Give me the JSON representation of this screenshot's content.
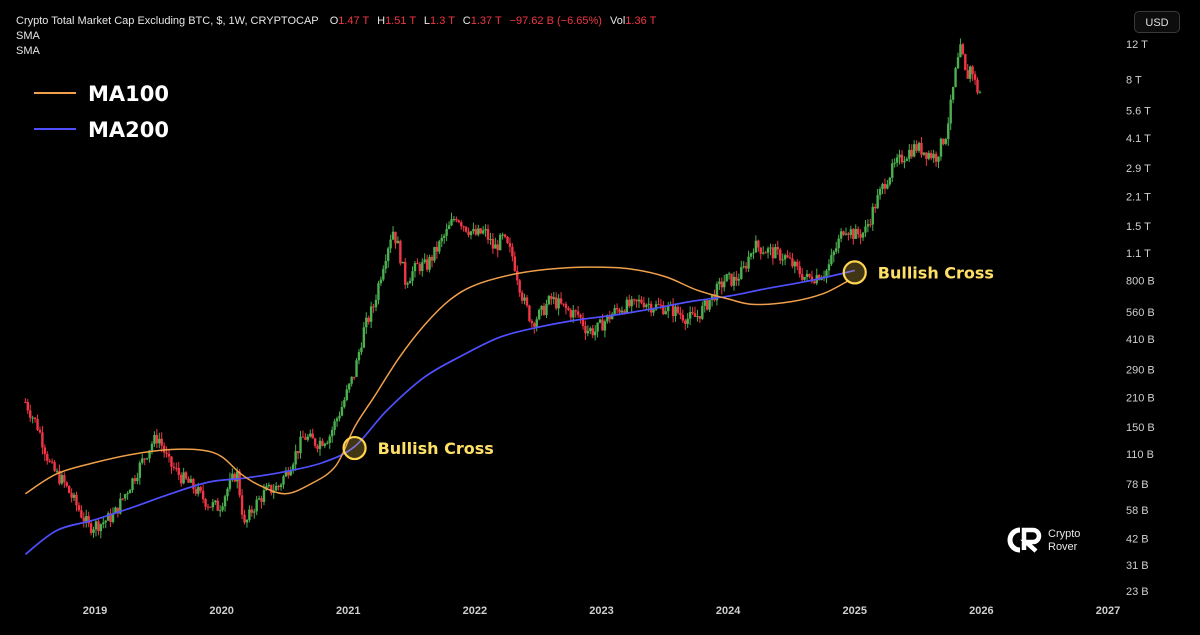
{
  "header": {
    "title": "Crypto Total Market Cap Excluding BTC, $, 1W, CRYPTOCAP",
    "o_label": "O",
    "o_value": "1.47 T",
    "h_label": "H",
    "h_value": "1.51 T",
    "l_label": "L",
    "l_value": "1.3 T",
    "c_label": "C",
    "c_value": "1.37 T",
    "change": "−97.62 B (−6.65%)",
    "vol_label": "Vol",
    "vol_value": "1.36 T",
    "sma_1": "SMA",
    "sma_2": "SMA"
  },
  "currency_button": "USD",
  "legend": [
    {
      "label": "MA100",
      "color": "#f0a04b"
    },
    {
      "label": "MA200",
      "color": "#4f4fff"
    }
  ],
  "brand": {
    "line1": "Crypto",
    "line2": "Rover"
  },
  "colors": {
    "up": "#4caf50",
    "down": "#f23645",
    "ma100": "#f0a04b",
    "ma200": "#4f4fff",
    "marker": "#ffd54f",
    "annotation": "#ffe066"
  },
  "chart_data": {
    "type": "candlestick",
    "title": "Crypto Total Market Cap Excluding BTC",
    "scale": "log",
    "y_ticks": [
      "12 T",
      "8 T",
      "5.6 T",
      "4.1 T",
      "2.9 T",
      "2.1 T",
      "1.5 T",
      "1.1 T",
      "800 B",
      "560 B",
      "410 B",
      "290 B",
      "210 B",
      "150 B",
      "110 B",
      "78 B",
      "58 B",
      "42 B",
      "31 B",
      "23 B"
    ],
    "y_tick_values": [
      12000,
      8000,
      5600,
      4100,
      2900,
      2100,
      1500,
      1100,
      800,
      560,
      410,
      290,
      210,
      150,
      110,
      78,
      58,
      42,
      31,
      23
    ],
    "x_ticks": [
      "2019",
      "2020",
      "2021",
      "2022",
      "2023",
      "2024",
      "2025",
      "2026",
      "2027"
    ],
    "x_tick_values": [
      2019,
      2020,
      2021,
      2022,
      2023,
      2024,
      2025,
      2026,
      2027
    ],
    "xlim": [
      2018.4,
      2027.3
    ],
    "price_path": [
      [
        2018.45,
        200
      ],
      [
        2018.55,
        150
      ],
      [
        2018.65,
        95
      ],
      [
        2018.75,
        80
      ],
      [
        2018.85,
        62
      ],
      [
        2018.95,
        48
      ],
      [
        2019.05,
        50
      ],
      [
        2019.15,
        55
      ],
      [
        2019.25,
        72
      ],
      [
        2019.35,
        95
      ],
      [
        2019.45,
        125
      ],
      [
        2019.5,
        135
      ],
      [
        2019.58,
        100
      ],
      [
        2019.68,
        85
      ],
      [
        2019.78,
        75
      ],
      [
        2019.9,
        62
      ],
      [
        2019.98,
        60
      ],
      [
        2020.05,
        75
      ],
      [
        2020.12,
        90
      ],
      [
        2020.18,
        48
      ],
      [
        2020.25,
        60
      ],
      [
        2020.35,
        72
      ],
      [
        2020.45,
        76
      ],
      [
        2020.55,
        100
      ],
      [
        2020.65,
        135
      ],
      [
        2020.75,
        125
      ],
      [
        2020.85,
        135
      ],
      [
        2020.95,
        190
      ],
      [
        2021.05,
        280
      ],
      [
        2021.12,
        450
      ],
      [
        2021.2,
        600
      ],
      [
        2021.28,
        1000
      ],
      [
        2021.35,
        1450
      ],
      [
        2021.4,
        1150
      ],
      [
        2021.45,
        800
      ],
      [
        2021.55,
        950
      ],
      [
        2021.62,
        950
      ],
      [
        2021.7,
        1150
      ],
      [
        2021.78,
        1400
      ],
      [
        2021.85,
        1700
      ],
      [
        2021.92,
        1500
      ],
      [
        2022.0,
        1350
      ],
      [
        2022.08,
        1400
      ],
      [
        2022.15,
        1150
      ],
      [
        2022.22,
        1300
      ],
      [
        2022.3,
        1050
      ],
      [
        2022.38,
        650
      ],
      [
        2022.45,
        500
      ],
      [
        2022.52,
        550
      ],
      [
        2022.6,
        650
      ],
      [
        2022.68,
        600
      ],
      [
        2022.75,
        560
      ],
      [
        2022.82,
        540
      ],
      [
        2022.88,
        460
      ],
      [
        2022.95,
        450
      ],
      [
        2023.02,
        500
      ],
      [
        2023.1,
        560
      ],
      [
        2023.18,
        600
      ],
      [
        2023.25,
        600
      ],
      [
        2023.32,
        640
      ],
      [
        2023.4,
        600
      ],
      [
        2023.5,
        590
      ],
      [
        2023.6,
        560
      ],
      [
        2023.68,
        520
      ],
      [
        2023.75,
        530
      ],
      [
        2023.82,
        600
      ],
      [
        2023.9,
        700
      ],
      [
        2023.98,
        820
      ],
      [
        2024.05,
        800
      ],
      [
        2024.12,
        900
      ],
      [
        2024.2,
        1200
      ],
      [
        2024.28,
        1150
      ],
      [
        2024.36,
        1100
      ],
      [
        2024.45,
        1050
      ],
      [
        2024.55,
        900
      ],
      [
        2024.62,
        820
      ],
      [
        2024.7,
        850
      ],
      [
        2024.78,
        900
      ],
      [
        2024.85,
        1150
      ],
      [
        2024.92,
        1500
      ],
      [
        2025.0,
        1350
      ],
      [
        2025.08,
        1400
      ],
      [
        2025.16,
        1900
      ],
      [
        2025.24,
        2500
      ],
      [
        2025.32,
        3000
      ],
      [
        2025.4,
        3400
      ],
      [
        2025.48,
        3700
      ],
      [
        2025.56,
        3500
      ],
      [
        2025.64,
        3300
      ],
      [
        2025.72,
        4300
      ],
      [
        2025.76,
        6000
      ],
      [
        2025.8,
        9000
      ],
      [
        2025.84,
        11500
      ],
      [
        2025.88,
        8000
      ],
      [
        2025.92,
        9500
      ],
      [
        2025.96,
        7200
      ],
      [
        2026.0,
        6800
      ]
    ],
    "ma100": [
      [
        2018.45,
        70
      ],
      [
        2018.7,
        88
      ],
      [
        2019.0,
        100
      ],
      [
        2019.3,
        110
      ],
      [
        2019.6,
        116
      ],
      [
        2019.85,
        115
      ],
      [
        2020.0,
        107
      ],
      [
        2020.15,
        88
      ],
      [
        2020.3,
        77
      ],
      [
        2020.5,
        70
      ],
      [
        2020.7,
        78
      ],
      [
        2020.9,
        96
      ],
      [
        2021.05,
        150
      ],
      [
        2021.2,
        210
      ],
      [
        2021.4,
        330
      ],
      [
        2021.6,
        480
      ],
      [
        2021.8,
        640
      ],
      [
        2022.0,
        760
      ],
      [
        2022.3,
        860
      ],
      [
        2022.6,
        915
      ],
      [
        2022.9,
        935
      ],
      [
        2023.2,
        920
      ],
      [
        2023.5,
        840
      ],
      [
        2023.75,
        720
      ],
      [
        2024.0,
        650
      ],
      [
        2024.2,
        610
      ],
      [
        2024.5,
        630
      ],
      [
        2024.75,
        690
      ],
      [
        2024.95,
        800
      ]
    ],
    "ma200": [
      [
        2018.45,
        35
      ],
      [
        2018.7,
        46
      ],
      [
        2019.0,
        52
      ],
      [
        2019.3,
        60
      ],
      [
        2019.6,
        70
      ],
      [
        2019.9,
        80
      ],
      [
        2020.2,
        84
      ],
      [
        2020.5,
        90
      ],
      [
        2020.8,
        100
      ],
      [
        2021.05,
        120
      ],
      [
        2021.3,
        180
      ],
      [
        2021.6,
        265
      ],
      [
        2021.9,
        340
      ],
      [
        2022.2,
        420
      ],
      [
        2022.5,
        470
      ],
      [
        2022.8,
        510
      ],
      [
        2023.1,
        540
      ],
      [
        2023.4,
        580
      ],
      [
        2023.7,
        630
      ],
      [
        2024.0,
        670
      ],
      [
        2024.3,
        730
      ],
      [
        2024.6,
        790
      ],
      [
        2024.8,
        840
      ],
      [
        2025.0,
        900
      ]
    ],
    "annotations": [
      {
        "text": "Bullish Cross",
        "x": 2021.05,
        "y": 118
      },
      {
        "text": "Bullish Cross",
        "x": 2025.0,
        "y": 880
      }
    ]
  }
}
